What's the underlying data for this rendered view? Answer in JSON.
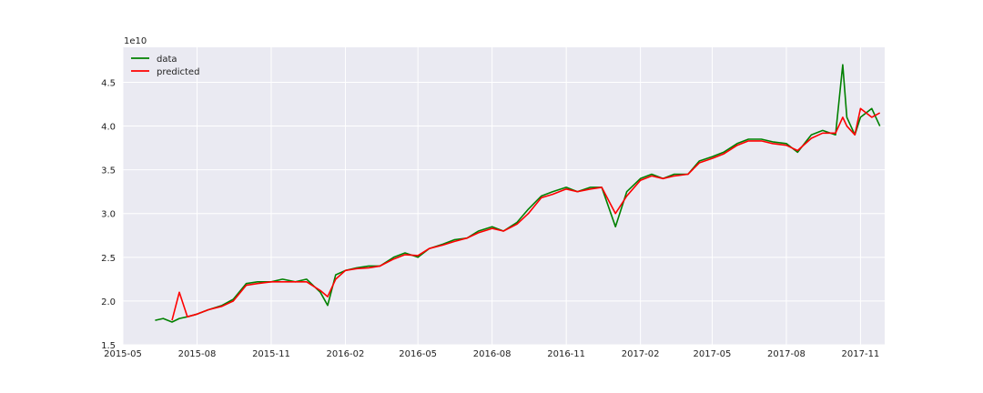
{
  "chart_data": {
    "type": "line",
    "offset_label": "1e10",
    "x_ticks": [
      "2015-05",
      "2015-08",
      "2015-11",
      "2016-02",
      "2016-05",
      "2016-08",
      "2016-11",
      "2017-02",
      "2017-05",
      "2017-08",
      "2017-11"
    ],
    "y_ticks": [
      "1.5",
      "2.0",
      "2.5",
      "3.0",
      "3.5",
      "4.0",
      "4.5"
    ],
    "xlim": [
      "2015-05-01",
      "2017-12-01"
    ],
    "ylim": [
      1.5,
      4.9
    ],
    "grid": true,
    "legend_position": "top-left",
    "series": [
      {
        "name": "data",
        "color": "#008000",
        "points": [
          [
            "2015-06-10",
            1.78
          ],
          [
            "2015-06-20",
            1.8
          ],
          [
            "2015-07-01",
            1.76
          ],
          [
            "2015-07-10",
            1.8
          ],
          [
            "2015-07-20",
            1.82
          ],
          [
            "2015-08-01",
            1.85
          ],
          [
            "2015-08-15",
            1.9
          ],
          [
            "2015-09-01",
            1.95
          ],
          [
            "2015-09-15",
            2.02
          ],
          [
            "2015-10-01",
            2.2
          ],
          [
            "2015-10-15",
            2.22
          ],
          [
            "2015-11-01",
            2.22
          ],
          [
            "2015-11-15",
            2.25
          ],
          [
            "2015-12-01",
            2.22
          ],
          [
            "2015-12-15",
            2.25
          ],
          [
            "2016-01-01",
            2.1
          ],
          [
            "2016-01-10",
            1.95
          ],
          [
            "2016-01-20",
            2.3
          ],
          [
            "2016-02-01",
            2.35
          ],
          [
            "2016-02-15",
            2.38
          ],
          [
            "2016-03-01",
            2.4
          ],
          [
            "2016-03-15",
            2.4
          ],
          [
            "2016-04-01",
            2.5
          ],
          [
            "2016-04-15",
            2.55
          ],
          [
            "2016-05-01",
            2.5
          ],
          [
            "2016-05-15",
            2.6
          ],
          [
            "2016-06-01",
            2.65
          ],
          [
            "2016-06-15",
            2.7
          ],
          [
            "2016-07-01",
            2.72
          ],
          [
            "2016-07-15",
            2.8
          ],
          [
            "2016-08-01",
            2.85
          ],
          [
            "2016-08-15",
            2.8
          ],
          [
            "2016-09-01",
            2.9
          ],
          [
            "2016-09-15",
            3.05
          ],
          [
            "2016-10-01",
            3.2
          ],
          [
            "2016-10-15",
            3.25
          ],
          [
            "2016-11-01",
            3.3
          ],
          [
            "2016-11-15",
            3.25
          ],
          [
            "2016-12-01",
            3.3
          ],
          [
            "2016-12-15",
            3.3
          ],
          [
            "2017-01-01",
            2.85
          ],
          [
            "2017-01-15",
            3.25
          ],
          [
            "2017-02-01",
            3.4
          ],
          [
            "2017-02-15",
            3.45
          ],
          [
            "2017-03-01",
            3.4
          ],
          [
            "2017-03-15",
            3.45
          ],
          [
            "2017-04-01",
            3.45
          ],
          [
            "2017-04-15",
            3.6
          ],
          [
            "2017-05-01",
            3.65
          ],
          [
            "2017-05-15",
            3.7
          ],
          [
            "2017-06-01",
            3.8
          ],
          [
            "2017-06-15",
            3.85
          ],
          [
            "2017-07-01",
            3.85
          ],
          [
            "2017-07-15",
            3.82
          ],
          [
            "2017-08-01",
            3.8
          ],
          [
            "2017-08-15",
            3.7
          ],
          [
            "2017-09-01",
            3.9
          ],
          [
            "2017-09-15",
            3.95
          ],
          [
            "2017-10-01",
            3.9
          ],
          [
            "2017-10-10",
            4.7
          ],
          [
            "2017-10-15",
            4.1
          ],
          [
            "2017-10-25",
            3.9
          ],
          [
            "2017-11-01",
            4.1
          ],
          [
            "2017-11-15",
            4.2
          ],
          [
            "2017-11-25",
            4.0
          ]
        ]
      },
      {
        "name": "predicted",
        "color": "#ff0000",
        "points": [
          [
            "2015-07-01",
            1.78
          ],
          [
            "2015-07-10",
            2.1
          ],
          [
            "2015-07-20",
            1.82
          ],
          [
            "2015-08-01",
            1.85
          ],
          [
            "2015-08-15",
            1.9
          ],
          [
            "2015-09-01",
            1.94
          ],
          [
            "2015-09-15",
            2.0
          ],
          [
            "2015-10-01",
            2.18
          ],
          [
            "2015-10-15",
            2.2
          ],
          [
            "2015-11-01",
            2.22
          ],
          [
            "2015-11-15",
            2.22
          ],
          [
            "2015-12-01",
            2.22
          ],
          [
            "2015-12-15",
            2.22
          ],
          [
            "2016-01-01",
            2.12
          ],
          [
            "2016-01-10",
            2.05
          ],
          [
            "2016-01-20",
            2.25
          ],
          [
            "2016-02-01",
            2.35
          ],
          [
            "2016-02-15",
            2.37
          ],
          [
            "2016-03-01",
            2.38
          ],
          [
            "2016-03-15",
            2.4
          ],
          [
            "2016-04-01",
            2.48
          ],
          [
            "2016-04-15",
            2.53
          ],
          [
            "2016-05-01",
            2.52
          ],
          [
            "2016-05-15",
            2.6
          ],
          [
            "2016-06-01",
            2.64
          ],
          [
            "2016-06-15",
            2.68
          ],
          [
            "2016-07-01",
            2.72
          ],
          [
            "2016-07-15",
            2.78
          ],
          [
            "2016-08-01",
            2.83
          ],
          [
            "2016-08-15",
            2.8
          ],
          [
            "2016-09-01",
            2.88
          ],
          [
            "2016-09-15",
            3.0
          ],
          [
            "2016-10-01",
            3.18
          ],
          [
            "2016-10-15",
            3.22
          ],
          [
            "2016-11-01",
            3.28
          ],
          [
            "2016-11-15",
            3.25
          ],
          [
            "2016-12-01",
            3.28
          ],
          [
            "2016-12-15",
            3.3
          ],
          [
            "2017-01-01",
            3.0
          ],
          [
            "2017-01-15",
            3.2
          ],
          [
            "2017-02-01",
            3.38
          ],
          [
            "2017-02-15",
            3.43
          ],
          [
            "2017-03-01",
            3.4
          ],
          [
            "2017-03-15",
            3.43
          ],
          [
            "2017-04-01",
            3.45
          ],
          [
            "2017-04-15",
            3.58
          ],
          [
            "2017-05-01",
            3.63
          ],
          [
            "2017-05-15",
            3.68
          ],
          [
            "2017-06-01",
            3.78
          ],
          [
            "2017-06-15",
            3.83
          ],
          [
            "2017-07-01",
            3.83
          ],
          [
            "2017-07-15",
            3.8
          ],
          [
            "2017-08-01",
            3.78
          ],
          [
            "2017-08-15",
            3.72
          ],
          [
            "2017-09-01",
            3.86
          ],
          [
            "2017-09-15",
            3.92
          ],
          [
            "2017-10-01",
            3.92
          ],
          [
            "2017-10-10",
            4.1
          ],
          [
            "2017-10-15",
            4.0
          ],
          [
            "2017-10-25",
            3.9
          ],
          [
            "2017-11-01",
            4.2
          ],
          [
            "2017-11-15",
            4.1
          ],
          [
            "2017-11-25",
            4.15
          ]
        ]
      }
    ]
  }
}
